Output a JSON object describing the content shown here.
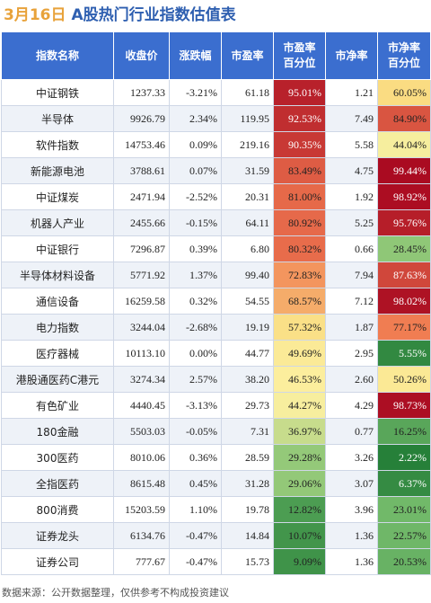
{
  "title": {
    "date": "3月16日",
    "main": "A股热门行业指数估值表"
  },
  "footer": "数据来源：公开数据整理，仅供参考不构成投资建议",
  "colors": {
    "header_bg": "#3b6ecf",
    "up": "#d6262e",
    "down": "#1e9b3c",
    "date": "#e8a23a",
    "title": "#2e5fb0"
  },
  "chart_data": {
    "type": "table",
    "title": "A股热门行业指数估值表",
    "columns": [
      "指数名称",
      "收盘价",
      "涨跌幅",
      "市盈率",
      "市盈率百分位",
      "市净率",
      "市净率百分位"
    ],
    "rows": [
      {
        "name": "中证钢铁",
        "close": "1237.33",
        "change": "-3.21%",
        "pe": "61.18",
        "pe_pct": "95.01%",
        "pb": "1.21",
        "pb_pct": "60.05%",
        "change_val": -3.21,
        "pe_pct_val": 95.01,
        "pb_pct_val": 60.05
      },
      {
        "name": "半导体",
        "close": "9926.79",
        "change": "2.34%",
        "pe": "119.95",
        "pe_pct": "92.53%",
        "pb": "7.49",
        "pb_pct": "84.90%",
        "change_val": 2.34,
        "pe_pct_val": 92.53,
        "pb_pct_val": 84.9
      },
      {
        "name": "软件指数",
        "close": "14753.46",
        "change": "0.09%",
        "pe": "219.16",
        "pe_pct": "90.35%",
        "pb": "5.58",
        "pb_pct": "44.04%",
        "change_val": 0.09,
        "pe_pct_val": 90.35,
        "pb_pct_val": 44.04
      },
      {
        "name": "新能源电池",
        "close": "3788.61",
        "change": "0.07%",
        "pe": "31.59",
        "pe_pct": "83.49%",
        "pb": "4.75",
        "pb_pct": "99.44%",
        "change_val": 0.07,
        "pe_pct_val": 83.49,
        "pb_pct_val": 99.44
      },
      {
        "name": "中证煤炭",
        "close": "2471.94",
        "change": "-2.52%",
        "pe": "20.31",
        "pe_pct": "81.00%",
        "pb": "1.92",
        "pb_pct": "98.92%",
        "change_val": -2.52,
        "pe_pct_val": 81.0,
        "pb_pct_val": 98.92
      },
      {
        "name": "机器人产业",
        "close": "2455.66",
        "change": "-0.15%",
        "pe": "64.11",
        "pe_pct": "80.92%",
        "pb": "5.25",
        "pb_pct": "95.76%",
        "change_val": -0.15,
        "pe_pct_val": 80.92,
        "pb_pct_val": 95.76
      },
      {
        "name": "中证银行",
        "close": "7296.87",
        "change": "0.39%",
        "pe": "6.80",
        "pe_pct": "80.32%",
        "pb": "0.66",
        "pb_pct": "28.45%",
        "change_val": 0.39,
        "pe_pct_val": 80.32,
        "pb_pct_val": 28.45
      },
      {
        "name": "半导体材料设备",
        "close": "5771.92",
        "change": "1.37%",
        "pe": "99.40",
        "pe_pct": "72.83%",
        "pb": "7.94",
        "pb_pct": "87.63%",
        "change_val": 1.37,
        "pe_pct_val": 72.83,
        "pb_pct_val": 87.63
      },
      {
        "name": "通信设备",
        "close": "16259.58",
        "change": "0.32%",
        "pe": "54.55",
        "pe_pct": "68.57%",
        "pb": "7.12",
        "pb_pct": "98.02%",
        "change_val": 0.32,
        "pe_pct_val": 68.57,
        "pb_pct_val": 98.02
      },
      {
        "name": "电力指数",
        "close": "3244.04",
        "change": "-2.68%",
        "pe": "19.19",
        "pe_pct": "57.32%",
        "pb": "1.87",
        "pb_pct": "77.17%",
        "change_val": -2.68,
        "pe_pct_val": 57.32,
        "pb_pct_val": 77.17
      },
      {
        "name": "医疗器械",
        "close": "10113.10",
        "change": "0.00%",
        "pe": "44.77",
        "pe_pct": "49.69%",
        "pb": "2.95",
        "pb_pct": "5.55%",
        "change_val": 0.0,
        "pe_pct_val": 49.69,
        "pb_pct_val": 5.55
      },
      {
        "name": "港股通医药C港元",
        "close": "3274.34",
        "change": "2.57%",
        "pe": "38.20",
        "pe_pct": "46.53%",
        "pb": "2.60",
        "pb_pct": "50.26%",
        "change_val": 2.57,
        "pe_pct_val": 46.53,
        "pb_pct_val": 50.26
      },
      {
        "name": "有色矿业",
        "close": "4440.45",
        "change": "-3.13%",
        "pe": "29.73",
        "pe_pct": "44.27%",
        "pb": "4.29",
        "pb_pct": "98.73%",
        "change_val": -3.13,
        "pe_pct_val": 44.27,
        "pb_pct_val": 98.73
      },
      {
        "name": "180金融",
        "close": "5503.03",
        "change": "-0.05%",
        "pe": "7.31",
        "pe_pct": "36.97%",
        "pb": "0.77",
        "pb_pct": "16.25%",
        "change_val": -0.05,
        "pe_pct_val": 36.97,
        "pb_pct_val": 16.25
      },
      {
        "name": "300医药",
        "close": "8010.06",
        "change": "0.36%",
        "pe": "28.59",
        "pe_pct": "29.28%",
        "pb": "3.26",
        "pb_pct": "2.22%",
        "change_val": 0.36,
        "pe_pct_val": 29.28,
        "pb_pct_val": 2.22
      },
      {
        "name": "全指医药",
        "close": "8615.48",
        "change": "0.45%",
        "pe": "31.28",
        "pe_pct": "29.06%",
        "pb": "3.07",
        "pb_pct": "6.37%",
        "change_val": 0.45,
        "pe_pct_val": 29.06,
        "pb_pct_val": 6.37
      },
      {
        "name": "800消费",
        "close": "15203.59",
        "change": "1.10%",
        "pe": "19.78",
        "pe_pct": "12.82%",
        "pb": "3.96",
        "pb_pct": "23.01%",
        "change_val": 1.1,
        "pe_pct_val": 12.82,
        "pb_pct_val": 23.01
      },
      {
        "name": "证券龙头",
        "close": "6134.76",
        "change": "-0.47%",
        "pe": "14.84",
        "pe_pct": "10.07%",
        "pb": "1.36",
        "pb_pct": "22.57%",
        "change_val": -0.47,
        "pe_pct_val": 10.07,
        "pb_pct_val": 22.57
      },
      {
        "name": "证券公司",
        "close": "777.67",
        "change": "-0.47%",
        "pe": "15.73",
        "pe_pct": "9.09%",
        "pb": "1.36",
        "pb_pct": "20.53%",
        "change_val": -0.47,
        "pe_pct_val": 9.09,
        "pb_pct_val": 20.53
      }
    ]
  }
}
